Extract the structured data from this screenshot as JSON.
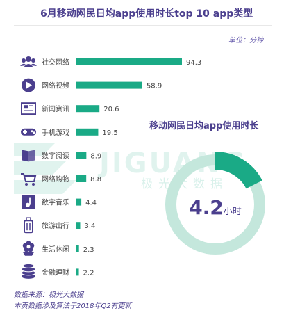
{
  "title": "6月移动网民日均app使用时长top 10 app类型",
  "unit_label": "单位：分钟",
  "watermark": {
    "brand": "JIGUANG",
    "sub": "极光大数据"
  },
  "colors": {
    "bar": "#1aaa86",
    "icon": "#4b3f8e",
    "donut_track": "#c4e7dc",
    "donut_fill": "#1aaa86",
    "text": "#4b3f8e"
  },
  "chart_data": [
    {
      "type": "bar",
      "orientation": "horizontal",
      "title": "6月移动网民日均app使用时长top 10 app类型",
      "unit": "分钟",
      "categories": [
        "社交网络",
        "网络视频",
        "新闻资讯",
        "手机游戏",
        "数字阅读",
        "网络购物",
        "数字音乐",
        "旅游出行",
        "生活休闲",
        "金融理财"
      ],
      "values": [
        94.3,
        58.9,
        20.6,
        19.5,
        8.9,
        8.8,
        4.4,
        3.4,
        2.3,
        2.2
      ],
      "value_labels": [
        "94.3",
        "58.9",
        "20.6",
        "19.5",
        "8.9",
        "8.8",
        "4.4",
        "3.4",
        "2.3",
        "2.2"
      ],
      "icons": [
        "people-icon",
        "play-icon",
        "news-icon",
        "gamepad-icon",
        "book-icon",
        "cart-icon",
        "music-icon",
        "luggage-icon",
        "flower-icon",
        "coins-icon"
      ],
      "xlim": [
        0,
        100
      ],
      "grid": false
    },
    {
      "type": "pie",
      "style": "donut",
      "title": "移动网民日均app使用时长",
      "value": 4.2,
      "value_label": "4.2",
      "unit": "小时",
      "fraction_highlighted": 0.175
    }
  ],
  "footer": {
    "source": "数据来源：极光大数据",
    "note": "本页数据涉及算法于2018年Q2有更新"
  }
}
